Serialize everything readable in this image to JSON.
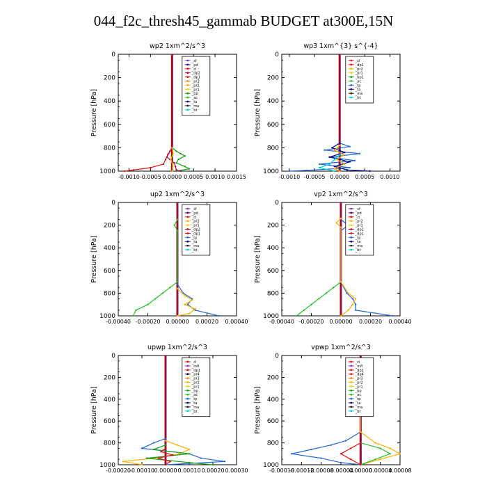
{
  "title": "044_f2c_thresh45_gammab  BUDGET at300E,15N",
  "colors": {
    "axis": "#000000",
    "thick": "#b00000",
    "term": {
      "sf": "#7f2fbf",
      "pd": "#4b0082",
      "cl": "#e01010",
      "dp2": "#b8004f",
      "dp1": "#e01010",
      "pr3": "#ff7f00",
      "pr2": "#ffb000",
      "pr1": "#f2d200",
      "bp": "#10a010",
      "bp1": "#10a010",
      "ac": "#22c022",
      "tp": "#1e66d0",
      "ta": "#000080",
      "ma": "#202020",
      "bt": "#00d0d0",
      "mfl": "#8a2be2",
      "dp4": "#e01010"
    }
  },
  "chart_data": [
    {
      "type": "line",
      "title": "wp2   1xm^2/s^3",
      "ylabel": "Pressure [hPa]",
      "ylim": [
        1000,
        0
      ],
      "xlim": [
        -0.00125,
        0.0015
      ],
      "xticks": [
        -0.001,
        -0.0005,
        0.0,
        0.0005,
        0.001,
        0.0015
      ],
      "xtick_labels": [
        "-0.0010",
        "-0.0005",
        "0.0000",
        "0.0005",
        "0.0010",
        "0.0015"
      ],
      "yticks": [
        0,
        200,
        400,
        600,
        800,
        1000
      ],
      "legend": [
        "_sf",
        "_pd",
        "_cl",
        "_dp2",
        "_dp1",
        "_pr3",
        "_pr2",
        "_pr1",
        "_bp",
        "_ac",
        "_ta",
        "_ma",
        "_bt"
      ],
      "series": [
        {
          "term": "bp",
          "p": [
            800,
            830,
            850,
            870,
            900,
            930,
            960,
            980,
            1000
          ],
          "v": [
            0,
            0.0001,
            0.0002,
            0.0003,
            0.00015,
            0.0001,
            0.0003,
            0.0004,
            0.0001
          ]
        },
        {
          "term": "cl",
          "p": [
            800,
            830,
            860,
            900,
            940,
            970,
            990,
            1000
          ],
          "v": [
            0,
            -5e-05,
            -0.0001,
            -0.00015,
            -0.0002,
            -0.0005,
            -0.0009,
            -0.0011
          ]
        },
        {
          "term": "dp2",
          "p": [
            800,
            850,
            880,
            900,
            930,
            960,
            990,
            1000
          ],
          "v": [
            0,
            -8e-05,
            -0.00012,
            -5e-05,
            5e-05,
            8e-05,
            0.0001,
            0.0002
          ]
        },
        {
          "term": "pr1",
          "p": [
            800,
            850,
            900,
            950,
            1000
          ],
          "v": [
            0,
            3e-05,
            -3e-05,
            2e-05,
            0.0
          ]
        }
      ]
    },
    {
      "type": "line",
      "title": "wp3   1xm^{3} s^{-4}",
      "ylabel": "Pressure [hPa]",
      "ylim": [
        1000,
        0
      ],
      "xlim": [
        -0.00115,
        0.0012
      ],
      "xticks": [
        -0.001,
        -0.0005,
        0.0,
        0.0005,
        0.001
      ],
      "xtick_labels": [
        "-0.0010",
        "-0.0005",
        "0.0000",
        "0.0005",
        "0.0010"
      ],
      "yticks": [
        0,
        200,
        400,
        600,
        800,
        1000
      ],
      "legend": [
        "_cl",
        "_dp1",
        "_pr2",
        "_pr1",
        "_bp1",
        "_ac",
        "_tp",
        "_ta",
        "_ma",
        "_bt"
      ],
      "series": [
        {
          "term": "tp",
          "p": [
            760,
            790,
            820,
            850,
            880,
            910,
            940,
            970,
            990,
            1000
          ],
          "v": [
            0,
            0.0002,
            -0.0003,
            0.0004,
            -0.0002,
            0.0003,
            -0.0004,
            0.0002,
            -0.0005,
            -0.001
          ]
        },
        {
          "term": "ta",
          "p": [
            760,
            800,
            840,
            880,
            920,
            960,
            990,
            1000
          ],
          "v": [
            0,
            -0.00015,
            0.0001,
            -0.0002,
            0.0002,
            -0.0001,
            0.00015,
            0.0006
          ]
        },
        {
          "term": "pr2",
          "p": [
            780,
            820,
            860,
            900,
            940,
            980,
            1000
          ],
          "v": [
            0,
            -0.0001,
            8e-05,
            -5e-05,
            0.0001,
            -0.0001,
            0.0
          ]
        },
        {
          "term": "bt",
          "p": [
            860,
            900,
            940,
            970,
            1000
          ],
          "v": [
            0,
            -0.0001,
            -0.0002,
            -0.0004,
            -0.0001
          ]
        }
      ]
    },
    {
      "type": "line",
      "title": "up2   1xm^2/s^3",
      "ylabel": "Pressure [hPa]",
      "ylim": [
        1000,
        0
      ],
      "xlim": [
        -0.0004,
        0.0004
      ],
      "xticks": [
        -0.0004,
        -0.0002,
        0.0,
        0.0002,
        0.0004
      ],
      "xtick_labels": [
        "-0.00040",
        "-0.00020",
        "0.00000",
        "0.00020",
        "0.00040"
      ],
      "yticks": [
        0,
        200,
        400,
        600,
        800,
        1000
      ],
      "legend": [
        "_sf",
        "_pd",
        "_cl",
        "_pr2",
        "_pr1",
        "_dp2",
        "_dp1",
        "_tp",
        "_ta",
        "_ma",
        "_bt"
      ],
      "series": [
        {
          "term": "ac",
          "p": [
            150,
            200,
            250,
            700,
            750,
            800,
            850,
            900,
            950,
            1000
          ],
          "v": [
            0,
            -2e-05,
            0,
            0,
            -5e-05,
            -0.0001,
            -0.00015,
            -0.0002,
            -0.00028,
            -0.0003
          ]
        },
        {
          "term": "tp",
          "p": [
            720,
            800,
            850,
            900,
            950,
            1000
          ],
          "v": [
            0,
            4e-05,
            0.0001,
            7e-05,
            0.00012,
            0.00028
          ]
        },
        {
          "term": "pr2",
          "p": [
            760,
            820,
            860,
            900,
            940,
            980,
            1000
          ],
          "v": [
            0,
            5e-05,
            0.0001,
            5e-05,
            0.00012,
            8e-05,
            0.0
          ]
        }
      ]
    },
    {
      "type": "line",
      "title": "vp2   1xm^2/s^3",
      "ylabel": "Pressure [hPa]",
      "ylim": [
        1000,
        0
      ],
      "xlim": [
        -0.0004,
        0.0004
      ],
      "xticks": [
        -0.0004,
        -0.0002,
        0.0,
        0.0002,
        0.0004
      ],
      "xtick_labels": [
        "-0.00040",
        "-0.00020",
        "0.00000",
        "0.00020",
        "0.00040"
      ],
      "yticks": [
        0,
        200,
        400,
        600,
        800,
        1000
      ],
      "legend": [
        "_sf",
        "_pd",
        "_cl",
        "_pr2",
        "_pr1",
        "_dp2",
        "_dp1",
        "_tp",
        "_ta",
        "_ma",
        "_bt"
      ],
      "series": [
        {
          "term": "ac",
          "p": [
            700,
            750,
            800,
            850,
            900,
            950,
            1000
          ],
          "v": [
            0,
            -5e-05,
            -0.0001,
            -0.00015,
            -0.0002,
            -0.00025,
            -0.0003
          ]
        },
        {
          "term": "tp",
          "p": [
            150,
            200,
            250,
            700,
            800,
            850,
            900,
            950,
            1000
          ],
          "v": [
            0,
            5e-05,
            0,
            0,
            4e-05,
            8e-05,
            0.0001,
            0.0001,
            0.00035
          ]
        },
        {
          "term": "pr2",
          "p": [
            140,
            180,
            220,
            700,
            800,
            850,
            900,
            950,
            1000
          ],
          "v": [
            0,
            -3e-05,
            0,
            0,
            5e-05,
            0.0001,
            8e-05,
            5e-05,
            0.0
          ]
        }
      ]
    },
    {
      "type": "line",
      "title": "upwp   1xm^2/s^3",
      "ylabel": "Pressure [hPa]",
      "ylim": [
        1000,
        0
      ],
      "xlim": [
        -0.0002,
        0.0003
      ],
      "xticks": [
        -0.0002,
        -0.0001,
        0.0,
        0.0001,
        0.0002,
        0.0003
      ],
      "xtick_labels": [
        "-0.00020",
        "-0.00010",
        "0.00000",
        "0.00010",
        "0.00020",
        "0.00030"
      ],
      "yticks": [
        0,
        200,
        400,
        600,
        800,
        1000
      ],
      "legend": [
        "_cl",
        "_mfl",
        "_dp1",
        "_pr4",
        "_pr3",
        "_pr2",
        "_pr1",
        "_bp",
        "_ac",
        "_tp",
        "_ta",
        "_ma",
        "_bt"
      ],
      "series": [
        {
          "term": "pr2",
          "p": [
            780,
            820,
            860,
            900,
            940,
            970,
            1000
          ],
          "v": [
            0,
            5e-05,
            0.0001,
            6e-05,
            -5e-05,
            -0.00018,
            -0.0001
          ]
        },
        {
          "term": "tp",
          "p": [
            760,
            800,
            850,
            900,
            940,
            970,
            1000
          ],
          "v": [
            0,
            -5e-05,
            -0.0001,
            0.0001,
            0.00015,
            0.00025,
            0.0
          ]
        },
        {
          "term": "bp",
          "p": [
            820,
            860,
            900,
            940,
            980,
            1000
          ],
          "v": [
            0,
            -5e-05,
            0.0001,
            -8e-05,
            0.0001,
            0.0002
          ]
        },
        {
          "term": "cl",
          "p": [
            850,
            880,
            910,
            940,
            970,
            1000
          ],
          "v": [
            0,
            -2e-05,
            3e-05,
            -3e-05,
            2e-05,
            0.0
          ]
        }
      ]
    },
    {
      "type": "line",
      "title": "vpwp   1xm^2/s^3",
      "ylabel": "Pressure [hPa]",
      "ylim": [
        1000,
        0
      ],
      "xlim": [
        -0.00016,
        8e-05
      ],
      "xticks": [
        -0.00016,
        -0.00012,
        -8e-05,
        -4e-05,
        0.0,
        4e-05,
        8e-05
      ],
      "xtick_labels": [
        "-0.00016",
        "-0.00012",
        "-0.00008",
        "-0.00004",
        "0.00000",
        "0.00004",
        "0.00008"
      ],
      "yticks": [
        0,
        200,
        400,
        600,
        800,
        1000
      ],
      "legend": [
        "_cl",
        "_mfl",
        "_dp1",
        "_dp4",
        "_pr3",
        "_pr2",
        "_pr1",
        "_bp",
        "_ac",
        "_tp",
        "_ta",
        "_ma",
        "_bt"
      ],
      "series": [
        {
          "term": "tp",
          "p": [
            700,
            780,
            820,
            860,
            900,
            940,
            980,
            1000
          ],
          "v": [
            0,
            -3e-05,
            -6e-05,
            -0.0001,
            -0.00014,
            -8e-05,
            -4e-05,
            0.0
          ]
        },
        {
          "term": "pr2",
          "p": [
            140,
            170,
            200,
            700,
            800,
            850,
            900,
            950,
            1000
          ],
          "v": [
            0,
            -1e-05,
            0,
            0,
            3e-05,
            6e-05,
            8e-05,
            4e-05,
            0.0
          ]
        },
        {
          "term": "ac",
          "p": [
            800,
            850,
            900,
            950,
            1000
          ],
          "v": [
            0,
            4e-05,
            6e-05,
            3e-05,
            0.0
          ]
        },
        {
          "term": "cl",
          "p": [
            800,
            850,
            900,
            950,
            1000
          ],
          "v": [
            0,
            -2e-05,
            -4e-05,
            -2e-05,
            0.0
          ]
        }
      ]
    }
  ]
}
